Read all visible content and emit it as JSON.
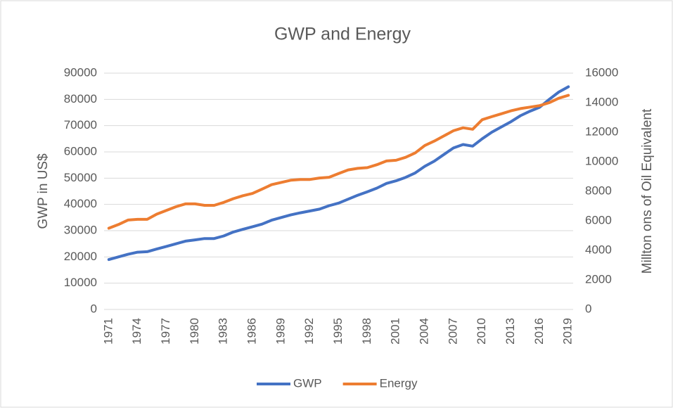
{
  "chart_data": {
    "type": "line",
    "title": "GWP and Energy",
    "ylabel": "GWP in US$",
    "y2label": "Millton ons of Oil Equivalent",
    "x": [
      1971,
      1972,
      1973,
      1974,
      1975,
      1976,
      1977,
      1978,
      1979,
      1980,
      1981,
      1982,
      1983,
      1984,
      1985,
      1986,
      1987,
      1988,
      1989,
      1990,
      1991,
      1992,
      1993,
      1994,
      1995,
      1996,
      1997,
      1998,
      1999,
      2000,
      2001,
      2002,
      2003,
      2004,
      2005,
      2006,
      2007,
      2008,
      2009,
      2010,
      2011,
      2012,
      2013,
      2014,
      2015,
      2016,
      2017,
      2018,
      2019
    ],
    "xlim": [
      1970.5,
      2019.5
    ],
    "xticks": [
      1971,
      1974,
      1977,
      1980,
      1983,
      1986,
      1989,
      1992,
      1995,
      1998,
      2001,
      2004,
      2007,
      2010,
      2013,
      2016,
      2019
    ],
    "ylim": [
      0,
      90000
    ],
    "yticks": [
      0,
      10000,
      20000,
      30000,
      40000,
      50000,
      60000,
      70000,
      80000,
      90000
    ],
    "y2lim": [
      0,
      16000
    ],
    "y2ticks": [
      0,
      2000,
      4000,
      6000,
      8000,
      10000,
      12000,
      14000,
      16000
    ],
    "grid": true,
    "legend": "bottom",
    "series": [
      {
        "name": "GWP",
        "color": "#4472c4",
        "values": [
          19000,
          20000,
          21000,
          21800,
          22000,
          23000,
          24000,
          25000,
          26000,
          26500,
          27000,
          27000,
          28000,
          29500,
          30500,
          31500,
          32500,
          34000,
          35000,
          36000,
          36800,
          37500,
          38200,
          39500,
          40500,
          42000,
          43500,
          44800,
          46200,
          48000,
          49000,
          50300,
          52000,
          54500,
          56500,
          59000,
          61500,
          62800,
          62200,
          65000,
          67500,
          69500,
          71500,
          73800,
          75500,
          77000,
          80000,
          82800,
          84800
        ]
      },
      {
        "name": "Energy",
        "color": "#ed7d31",
        "axis": "y2",
        "values": [
          5500,
          5750,
          6050,
          6100,
          6100,
          6450,
          6700,
          6950,
          7150,
          7150,
          7050,
          7050,
          7250,
          7500,
          7700,
          7850,
          8150,
          8450,
          8600,
          8750,
          8800,
          8800,
          8900,
          8950,
          9200,
          9450,
          9550,
          9600,
          9800,
          10050,
          10100,
          10300,
          10600,
          11100,
          11400,
          11750,
          12100,
          12300,
          12200,
          12850,
          13050,
          13250,
          13450,
          13600,
          13700,
          13800,
          14000,
          14300,
          14500
        ]
      }
    ]
  }
}
